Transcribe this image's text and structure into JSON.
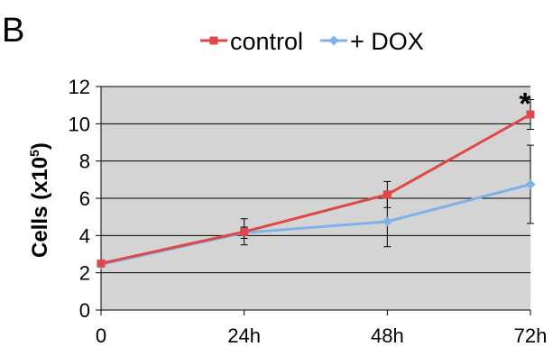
{
  "panel_label": "B",
  "chart_data": {
    "type": "line",
    "title": "",
    "xlabel": "",
    "ylabel": "Cells (x10",
    "ylabel_sup": "5",
    "ylabel_close": ")",
    "categories": [
      "0",
      "24h",
      "48h",
      "72h"
    ],
    "ylim": [
      0,
      12
    ],
    "yticks": [
      0,
      2,
      4,
      6,
      8,
      10,
      12
    ],
    "grid": true,
    "plot_background": "#d4d4d4",
    "legend_position": "top",
    "series": [
      {
        "name": "control",
        "color": "#e04848",
        "marker": "square",
        "values": [
          2.5,
          4.2,
          6.2,
          10.5
        ],
        "errors": [
          0.1,
          0.7,
          0.7,
          0.8
        ]
      },
      {
        "name": "+ DOX",
        "color": "#7fb2ea",
        "marker": "diamond",
        "values": [
          2.45,
          4.15,
          4.75,
          6.75
        ],
        "errors": [
          0.1,
          0.3,
          1.35,
          2.1
        ]
      }
    ],
    "annotations": [
      {
        "text": "*",
        "category": "72h",
        "y": 11.6
      }
    ]
  }
}
